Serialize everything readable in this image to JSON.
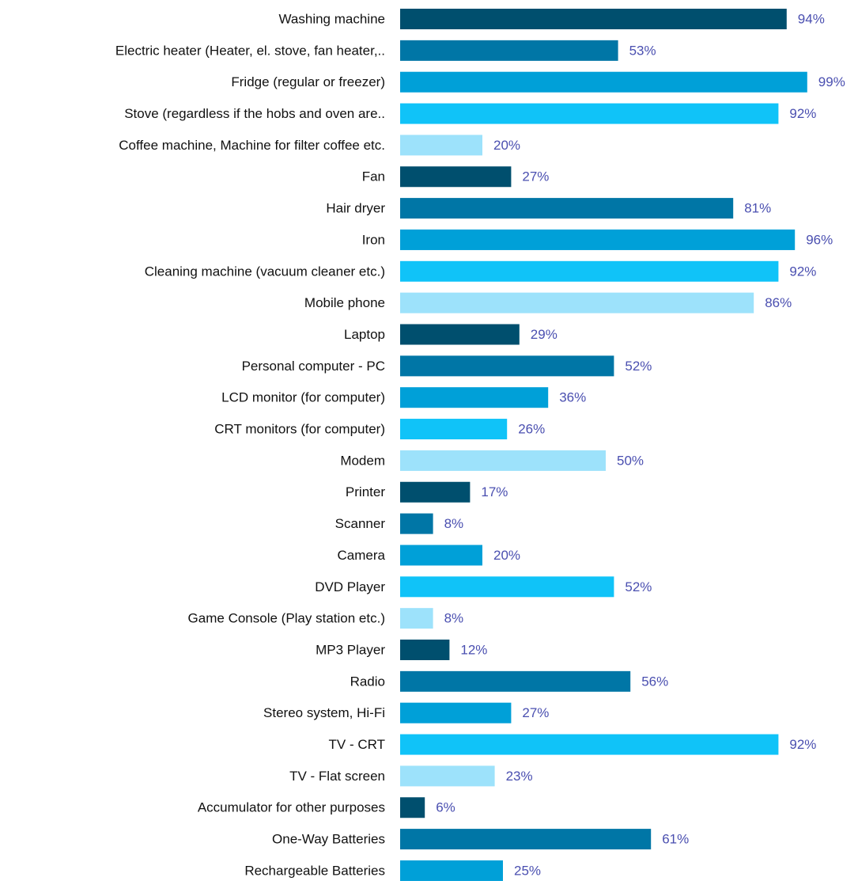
{
  "chart_data": {
    "type": "bar",
    "orientation": "horizontal",
    "categories": [
      "Washing machine",
      "Electric heater (Heater, el. stove, fan heater,..",
      "Fridge (regular or freezer)",
      "Stove (regardless if the hobs and oven are..",
      "Coffee machine, Machine for filter coffee etc.",
      "Fan",
      "Hair dryer",
      "Iron",
      "Cleaning machine (vacuum cleaner etc.)",
      "Mobile phone",
      "Laptop",
      "Personal computer - PC",
      "LCD monitor (for computer)",
      "CRT monitors (for computer)",
      "Modem",
      "Printer",
      "Scanner",
      "Camera",
      "DVD Player",
      "Game Console (Play station etc.)",
      "MP3 Player",
      "Radio",
      "Stereo system, Hi-Fi",
      "TV - CRT",
      "TV - Flat screen",
      "Accumulator for other purposes",
      "One-Way Batteries",
      "Rechargeable Batteries"
    ],
    "values": [
      94,
      53,
      99,
      92,
      20,
      27,
      81,
      96,
      92,
      86,
      29,
      52,
      36,
      26,
      50,
      17,
      8,
      20,
      52,
      8,
      12,
      56,
      27,
      92,
      23,
      6,
      61,
      25
    ],
    "value_labels": [
      "94%",
      "53%",
      "99%",
      "92%",
      "20%",
      "27%",
      "81%",
      "96%",
      "92%",
      "86%",
      "29%",
      "52%",
      "36%",
      "26%",
      "50%",
      "17%",
      "8%",
      "20%",
      "52%",
      "8%",
      "12%",
      "56%",
      "27%",
      "92%",
      "23%",
      "6%",
      "61%",
      "25%"
    ],
    "colors": [
      "#004f6e",
      "#0076a6",
      "#00a0d8",
      "#10c3f8",
      "#9de2fb"
    ]
  }
}
